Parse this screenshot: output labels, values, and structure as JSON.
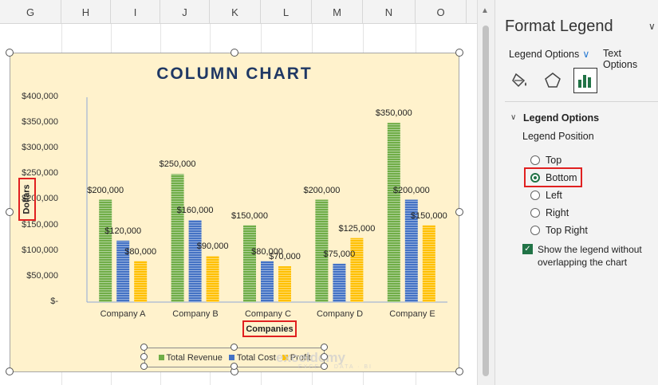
{
  "spreadsheet": {
    "columns": [
      "G",
      "H",
      "I",
      "J",
      "K",
      "L",
      "M",
      "N",
      "O"
    ]
  },
  "chart_data": {
    "type": "bar",
    "title": "COLUMN CHART",
    "xlabel": "Companies",
    "ylabel": "Dollars",
    "categories": [
      "Company A",
      "Company B",
      "Company C",
      "Company D",
      "Company E"
    ],
    "series": [
      {
        "name": "Total Revenue",
        "values": [
          200000,
          250000,
          150000,
          200000,
          350000
        ],
        "color": "#70ad47"
      },
      {
        "name": "Total Cost",
        "values": [
          120000,
          160000,
          80000,
          75000,
          200000
        ],
        "color": "#4472c4"
      },
      {
        "name": "Profit",
        "values": [
          80000,
          90000,
          70000,
          125000,
          150000
        ],
        "color": "#ffc000"
      }
    ],
    "data_labels": [
      [
        "$200,000",
        "$250,000",
        "$150,000",
        "$200,000",
        "$350,000"
      ],
      [
        "$120,000",
        "$160,000",
        "$80,000",
        "$75,000",
        "$200,000"
      ],
      [
        "$80,000",
        "$90,000",
        "$70,000",
        "$125,000",
        "$150,000"
      ]
    ],
    "ylim": [
      0,
      400000
    ],
    "yticks": [
      "$400,000",
      "$350,000",
      "$300,000",
      "$250,000",
      "$200,000",
      "$150,000",
      "$100,000",
      "$50,000",
      "$-"
    ],
    "legend_position": "bottom",
    "grid": false,
    "background": "#fff2cc",
    "title_color": "#1f3864"
  },
  "watermark": {
    "name": "exceldemy",
    "tagline": "EXCEL · DATA · BI"
  },
  "pane": {
    "title": "Format Legend",
    "tab_legend_options": "Legend Options",
    "tab_text_options": "Text Options",
    "icons": [
      "fill-line-icon",
      "effects-icon",
      "legend-options-icon"
    ],
    "section_title": "Legend Options",
    "position_label": "Legend Position",
    "positions": [
      "Top",
      "Bottom",
      "Left",
      "Right",
      "Top Right"
    ],
    "selected_position": "Bottom",
    "overlap_label": "Show the legend without overlapping the chart",
    "overlap_checked": true,
    "accent": "#217346"
  }
}
